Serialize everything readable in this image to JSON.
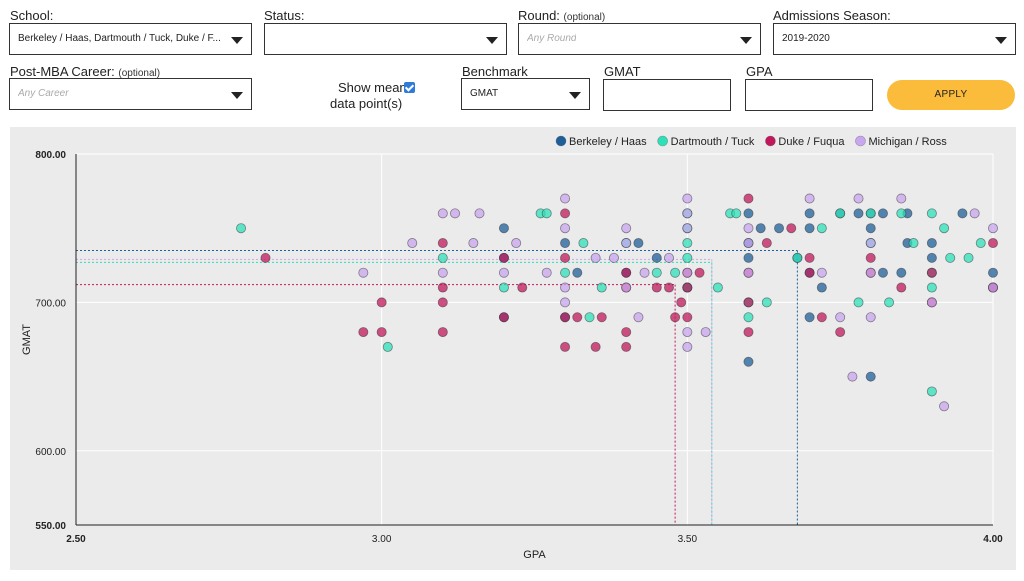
{
  "filters": {
    "school": {
      "label": "School:",
      "value": "Berkeley / Haas, Dartmouth / Tuck, Duke / F..."
    },
    "status": {
      "label": "Status:",
      "value": ""
    },
    "round": {
      "label": "Round:",
      "optional": "(optional)",
      "placeholder": "Any Round"
    },
    "season": {
      "label": "Admissions Season:",
      "value": "2019-2020"
    },
    "career": {
      "label": "Post-MBA Career:",
      "optional": "(optional)",
      "placeholder": "Any Career"
    },
    "show_mean": {
      "label_line1": "Show mean",
      "label_line2": "data point(s)",
      "checked": true
    },
    "benchmark": {
      "label": "Benchmark",
      "value": "GMAT"
    },
    "gmat": {
      "label": "GMAT",
      "value": ""
    },
    "gpa": {
      "label": "GPA",
      "value": ""
    },
    "apply_label": "APPLY",
    "apply_color": "#fbbc3b"
  },
  "chart_data": {
    "type": "scatter",
    "xlabel": "GPA",
    "ylabel": "GMAT",
    "xlim": [
      2.5,
      4.0
    ],
    "ylim": [
      550,
      800
    ],
    "x_ticks": [
      {
        "value": 2.5,
        "label": "2.50"
      },
      {
        "value": 3.0,
        "label": "3.00"
      },
      {
        "value": 3.5,
        "label": "3.50"
      },
      {
        "value": 4.0,
        "label": "4.00"
      }
    ],
    "y_ticks": [
      {
        "value": 550,
        "label": "550.00"
      },
      {
        "value": 600,
        "label": "600.00"
      },
      {
        "value": 700,
        "label": "700.00"
      },
      {
        "value": 800,
        "label": "800.00"
      }
    ],
    "grid": true,
    "legend_position": "top-right",
    "series": [
      {
        "name": "Berkeley / Haas",
        "color": "#1f5f99",
        "mean": {
          "gpa": 3.68,
          "gmat": 735
        },
        "points": [
          [
            3.2,
            750
          ],
          [
            3.2,
            730
          ],
          [
            3.3,
            740
          ],
          [
            3.32,
            720
          ],
          [
            3.4,
            720
          ],
          [
            3.42,
            740
          ],
          [
            3.45,
            730
          ],
          [
            3.6,
            660
          ],
          [
            3.6,
            730
          ],
          [
            3.6,
            740
          ],
          [
            3.6,
            760
          ],
          [
            3.62,
            750
          ],
          [
            3.65,
            750
          ],
          [
            3.68,
            730
          ],
          [
            3.7,
            760
          ],
          [
            3.7,
            750
          ],
          [
            3.7,
            720
          ],
          [
            3.7,
            690
          ],
          [
            3.72,
            710
          ],
          [
            3.75,
            760
          ],
          [
            3.78,
            760
          ],
          [
            3.8,
            760
          ],
          [
            3.8,
            750
          ],
          [
            3.82,
            720
          ],
          [
            3.82,
            760
          ],
          [
            3.85,
            720
          ],
          [
            3.86,
            760
          ],
          [
            3.86,
            740
          ],
          [
            3.9,
            740
          ],
          [
            3.9,
            730
          ],
          [
            3.95,
            760
          ],
          [
            4.0,
            720
          ],
          [
            4.0,
            710
          ],
          [
            3.3,
            690
          ],
          [
            3.2,
            690
          ],
          [
            3.5,
            710
          ],
          [
            3.8,
            650
          ]
        ]
      },
      {
        "name": "Dartmouth / Tuck",
        "color": "#2ee0b8",
        "mean": {
          "gpa": 3.54,
          "gmat": 727
        },
        "points": [
          [
            2.77,
            750
          ],
          [
            3.01,
            670
          ],
          [
            3.1,
            730
          ],
          [
            3.2,
            710
          ],
          [
            3.26,
            760
          ],
          [
            3.27,
            760
          ],
          [
            3.3,
            720
          ],
          [
            3.33,
            740
          ],
          [
            3.34,
            690
          ],
          [
            3.36,
            710
          ],
          [
            3.4,
            740
          ],
          [
            3.45,
            720
          ],
          [
            3.48,
            720
          ],
          [
            3.5,
            710
          ],
          [
            3.5,
            730
          ],
          [
            3.5,
            740
          ],
          [
            3.5,
            750
          ],
          [
            3.5,
            760
          ],
          [
            3.55,
            710
          ],
          [
            3.57,
            760
          ],
          [
            3.58,
            760
          ],
          [
            3.6,
            690
          ],
          [
            3.6,
            700
          ],
          [
            3.63,
            700
          ],
          [
            3.68,
            730
          ],
          [
            3.72,
            750
          ],
          [
            3.75,
            760
          ],
          [
            3.78,
            700
          ],
          [
            3.8,
            740
          ],
          [
            3.8,
            760
          ],
          [
            3.83,
            700
          ],
          [
            3.85,
            760
          ],
          [
            3.87,
            740
          ],
          [
            3.9,
            760
          ],
          [
            3.9,
            720
          ],
          [
            3.9,
            710
          ],
          [
            3.92,
            750
          ],
          [
            3.93,
            730
          ],
          [
            3.9,
            640
          ],
          [
            3.98,
            740
          ],
          [
            3.96,
            730
          ]
        ]
      },
      {
        "name": "Duke / Fuqua",
        "color": "#c2185b",
        "mean": {
          "gpa": 3.48,
          "gmat": 712
        },
        "points": [
          [
            2.81,
            730
          ],
          [
            2.97,
            680
          ],
          [
            3.0,
            680
          ],
          [
            3.0,
            700
          ],
          [
            3.1,
            740
          ],
          [
            3.1,
            710
          ],
          [
            3.1,
            700
          ],
          [
            3.1,
            680
          ],
          [
            3.2,
            730
          ],
          [
            3.2,
            690
          ],
          [
            3.23,
            710
          ],
          [
            3.3,
            670
          ],
          [
            3.3,
            690
          ],
          [
            3.3,
            730
          ],
          [
            3.3,
            760
          ],
          [
            3.32,
            690
          ],
          [
            3.35,
            670
          ],
          [
            3.36,
            690
          ],
          [
            3.4,
            720
          ],
          [
            3.4,
            710
          ],
          [
            3.4,
            680
          ],
          [
            3.4,
            670
          ],
          [
            3.45,
            710
          ],
          [
            3.47,
            710
          ],
          [
            3.48,
            690
          ],
          [
            3.49,
            700
          ],
          [
            3.5,
            720
          ],
          [
            3.5,
            710
          ],
          [
            3.5,
            690
          ],
          [
            3.52,
            720
          ],
          [
            3.6,
            770
          ],
          [
            3.6,
            720
          ],
          [
            3.6,
            700
          ],
          [
            3.6,
            680
          ],
          [
            3.63,
            740
          ],
          [
            3.67,
            750
          ],
          [
            3.7,
            730
          ],
          [
            3.7,
            720
          ],
          [
            3.72,
            690
          ],
          [
            3.75,
            680
          ],
          [
            3.8,
            730
          ],
          [
            3.8,
            720
          ],
          [
            3.85,
            710
          ],
          [
            3.9,
            700
          ],
          [
            3.9,
            720
          ],
          [
            4.0,
            740
          ],
          [
            4.0,
            710
          ]
        ]
      },
      {
        "name": "Michigan / Ross",
        "color": "#c9a6f0",
        "mean": {
          "gpa": 3.54,
          "gmat": 729
        },
        "points": [
          [
            2.97,
            720
          ],
          [
            3.05,
            740
          ],
          [
            3.1,
            760
          ],
          [
            3.12,
            760
          ],
          [
            3.16,
            760
          ],
          [
            3.1,
            720
          ],
          [
            3.15,
            740
          ],
          [
            3.2,
            720
          ],
          [
            3.22,
            740
          ],
          [
            3.27,
            720
          ],
          [
            3.3,
            770
          ],
          [
            3.3,
            750
          ],
          [
            3.3,
            710
          ],
          [
            3.3,
            700
          ],
          [
            3.35,
            730
          ],
          [
            3.38,
            730
          ],
          [
            3.4,
            750
          ],
          [
            3.4,
            740
          ],
          [
            3.4,
            710
          ],
          [
            3.42,
            690
          ],
          [
            3.43,
            720
          ],
          [
            3.47,
            730
          ],
          [
            3.5,
            770
          ],
          [
            3.5,
            760
          ],
          [
            3.5,
            750
          ],
          [
            3.5,
            720
          ],
          [
            3.5,
            680
          ],
          [
            3.5,
            670
          ],
          [
            3.53,
            680
          ],
          [
            3.6,
            750
          ],
          [
            3.6,
            720
          ],
          [
            3.6,
            740
          ],
          [
            3.7,
            770
          ],
          [
            3.72,
            720
          ],
          [
            3.75,
            690
          ],
          [
            3.77,
            650
          ],
          [
            3.78,
            770
          ],
          [
            3.8,
            690
          ],
          [
            3.8,
            720
          ],
          [
            3.8,
            740
          ],
          [
            3.85,
            770
          ],
          [
            3.9,
            700
          ],
          [
            3.92,
            630
          ],
          [
            3.97,
            760
          ],
          [
            4.0,
            750
          ],
          [
            4.0,
            710
          ]
        ]
      }
    ]
  }
}
